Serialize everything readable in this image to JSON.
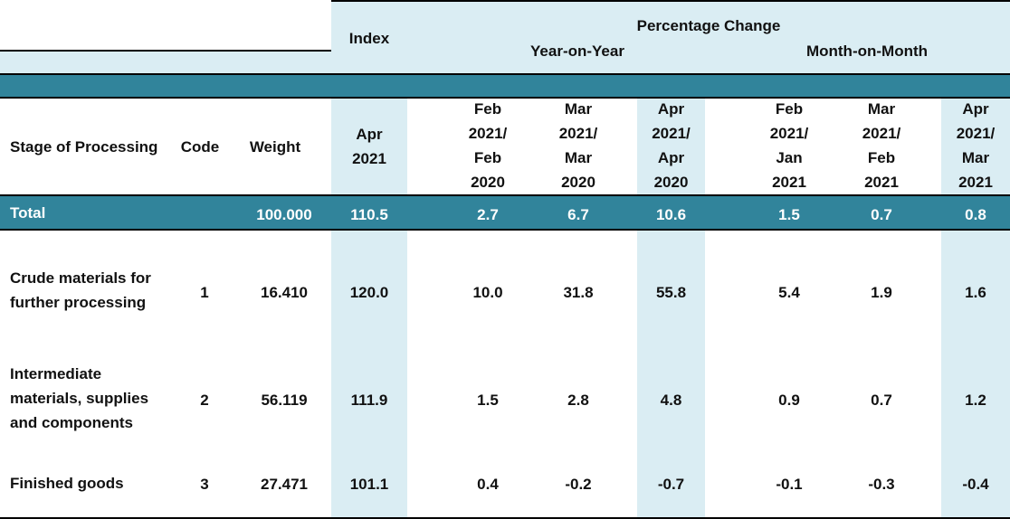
{
  "header": {
    "index_label": "Index",
    "pct_change_label": "Percentage Change",
    "yoy_label": "Year-on-Year",
    "mom_label": "Month-on-Month",
    "columns": {
      "stage": "Stage of Processing",
      "code": "Code",
      "weight": "Weight",
      "index_period": [
        "Apr",
        "2021"
      ],
      "yoy1": [
        "Feb",
        "2021/",
        "Feb",
        "2020"
      ],
      "yoy2": [
        "Mar",
        "2021/",
        "Mar",
        "2020"
      ],
      "yoy3": [
        "Apr",
        "2021/",
        "Apr",
        "2020"
      ],
      "mom1": [
        "Feb",
        "2021/",
        "Jan",
        "2021"
      ],
      "mom2": [
        "Mar",
        "2021/",
        "Feb",
        "2021"
      ],
      "mom3": [
        "Apr",
        "2021/",
        "Mar",
        "2021"
      ]
    }
  },
  "total": {
    "label": "Total",
    "weight": "100.000",
    "index": "110.5",
    "yoy": [
      "2.7",
      "6.7",
      "10.6"
    ],
    "mom": [
      "1.5",
      "0.7",
      "0.8"
    ]
  },
  "rows": [
    {
      "label_lines": [
        "Crude materials for",
        "further processing"
      ],
      "code": "1",
      "weight": "16.410",
      "index": "120.0",
      "yoy": [
        "10.0",
        "31.8",
        "55.8"
      ],
      "mom": [
        "5.4",
        "1.9",
        "1.6"
      ]
    },
    {
      "label_lines": [
        "Intermediate",
        "materials, supplies",
        "and components"
      ],
      "code": "2",
      "weight": "56.119",
      "index": "111.9",
      "yoy": [
        "1.5",
        "2.8",
        "4.8"
      ],
      "mom": [
        "0.9",
        "0.7",
        "1.2"
      ]
    },
    {
      "label_lines": [
        "Finished goods"
      ],
      "code": "3",
      "weight": "27.471",
      "index": "101.1",
      "yoy": [
        "0.4",
        "-0.2",
        "-0.7"
      ],
      "mom": [
        "-0.1",
        "-0.3",
        "-0.4"
      ]
    }
  ],
  "colors": {
    "shade": "#daedf3",
    "band": "#31849b"
  }
}
